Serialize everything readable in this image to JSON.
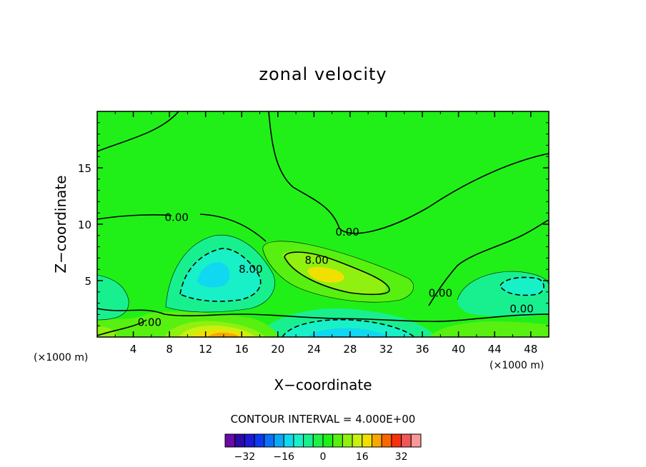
{
  "chart_data": {
    "type": "contour",
    "title": "zonal velocity",
    "xlabel": "X−coordinate",
    "ylabel": "Z−coordinate",
    "x_unit": "(×1000 m)",
    "y_unit": "(×1000 m)",
    "xlim": [
      0,
      50
    ],
    "ylim": [
      0,
      20
    ],
    "x_ticks": [
      4,
      8,
      12,
      16,
      20,
      24,
      28,
      32,
      36,
      40,
      44,
      48
    ],
    "x_tick_labels": [
      "4",
      "8",
      "12",
      "16",
      "20",
      "24",
      "28",
      "32",
      "36",
      "40",
      "44",
      "48"
    ],
    "y_ticks": [
      5,
      10,
      15
    ],
    "y_tick_labels": [
      "5",
      "10",
      "15"
    ],
    "contour_interval_text": "CONTOUR INTERVAL = 4.000E+00",
    "contour_labels": [
      {
        "text": "0.00",
        "x": 8.8,
        "z": 10.6
      },
      {
        "text": "0.00",
        "x": 27.7,
        "z": 9.3
      },
      {
        "text": "8.00",
        "x": 24.3,
        "z": 6.8
      },
      {
        "text": "8.00",
        "x": 17.0,
        "z": 6.0
      },
      {
        "text": "0.00",
        "x": 5.8,
        "z": 1.3
      },
      {
        "text": "0.00",
        "x": 38.0,
        "z": 3.9
      },
      {
        "text": "0.00",
        "x": 47.0,
        "z": 2.5
      }
    ],
    "colorbar": {
      "levels": [
        -36,
        -32,
        -28,
        -24,
        -20,
        -16,
        -12,
        -8,
        -4,
        0,
        4,
        8,
        12,
        16,
        20,
        24,
        28,
        32,
        36
      ],
      "colors": [
        "#6a0aa8",
        "#2a0aa8",
        "#1a1ad8",
        "#0a3af0",
        "#0a70f8",
        "#0aa8f8",
        "#10d8f0",
        "#18f0c8",
        "#18f090",
        "#20f048",
        "#20f018",
        "#58f010",
        "#90f010",
        "#c8f010",
        "#f0e000",
        "#f8a800",
        "#f86800",
        "#f83010",
        "#f05858",
        "#f89898"
      ],
      "tick_labels": [
        "−32",
        "−16",
        "0",
        "16",
        "32"
      ],
      "tick_values": [
        -32,
        -16,
        0,
        16,
        32
      ]
    },
    "legend": "bottom-center colorbar"
  }
}
